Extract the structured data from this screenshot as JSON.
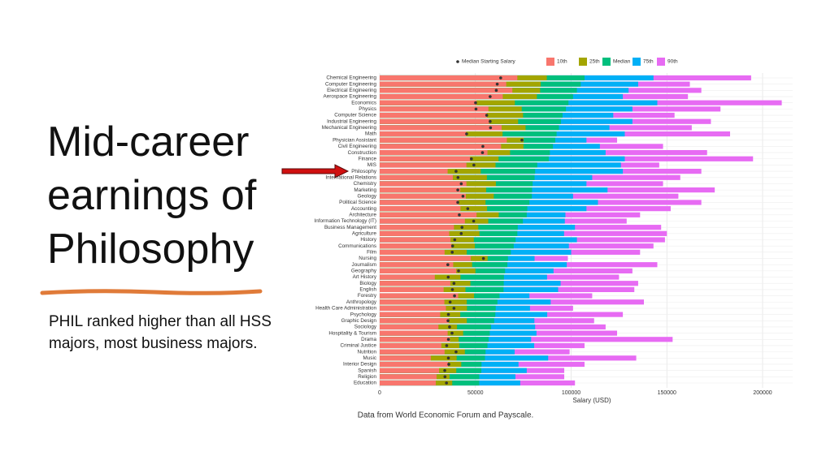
{
  "slide": {
    "title": "Mid-career earnings of Philosophy",
    "subtitle": "PHIL ranked higher than all HSS majors, most business majors."
  },
  "chart_data": {
    "type": "bar",
    "orientation": "horizontal",
    "x_label": "Salary (USD)",
    "caption": "Data from World Economic Forum and Payscale.",
    "categories": [
      "Chemical Engineering",
      "Computer Engineering",
      "Electrical Engineering",
      "Aerospace Engineering",
      "Economics",
      "Physics",
      "Computer Science",
      "Industrial Engineering",
      "Mechanical Engineering",
      "Math",
      "Physician Assistant",
      "Civil Engineering",
      "Construction",
      "Finance",
      "MIS",
      "Philosophy",
      "International Relations",
      "Chemistry",
      "Marketing",
      "Geology",
      "Political Science",
      "Accounting",
      "Architecture",
      "Information Technology (IT)",
      "Business Management",
      "Agriculture",
      "History",
      "Communications",
      "Film",
      "Nursing",
      "Journalism",
      "Geography",
      "Art History",
      "Biology",
      "English",
      "Forestry",
      "Anthropology",
      "Health Care Administration",
      "Psychology",
      "Graphic Design",
      "Sociology",
      "Hospitality & Tourism",
      "Drama",
      "Criminal Justice",
      "Nutrition",
      "Music",
      "Interior Design",
      "Spanish",
      "Religion",
      "Education"
    ],
    "series": [
      {
        "name": "10th",
        "color": "#f8766d",
        "values": [
          71900,
          66100,
          69300,
          64300,
          50600,
          56800,
          56000,
          57100,
          63700,
          45200,
          66400,
          63400,
          56300,
          47200,
          45300,
          35500,
          38200,
          45300,
          42100,
          45000,
          41200,
          42200,
          50600,
          44500,
          38800,
          36300,
          37000,
          37500,
          33900,
          47600,
          38400,
          40000,
          28800,
          36900,
          33400,
          41000,
          33800,
          34600,
          31600,
          36000,
          30700,
          35500,
          36700,
          32200,
          33900,
          26700,
          35700,
          31000,
          29700,
          29300
        ]
      },
      {
        "name": "25th",
        "color": "#a3a500",
        "values": [
          87300,
          84100,
          83800,
          82100,
          70600,
          74200,
          74900,
          72300,
          76200,
          64200,
          75200,
          75100,
          68100,
          62100,
          60500,
          52800,
          56000,
          60700,
          55600,
          59600,
          55300,
          56100,
          62200,
          56700,
          51500,
          52100,
          49200,
          49700,
          45500,
          56400,
          48300,
          50000,
          42200,
          47400,
          44800,
          49300,
          45500,
          45600,
          42100,
          45500,
          40400,
          43600,
          41300,
          41600,
          44500,
          40200,
          42600,
          40000,
          36500,
          37900
        ]
      },
      {
        "name": "Median",
        "color": "#00bf7d",
        "values": [
          107000,
          105000,
          103000,
          101000,
          98600,
          97300,
          95500,
          94700,
          93600,
          92400,
          91700,
          90500,
          88900,
          88300,
          82300,
          81200,
          80900,
          79900,
          79600,
          79500,
          78200,
          77100,
          76800,
          74800,
          72100,
          71900,
          71000,
          70000,
          68500,
          67000,
          66700,
          65500,
          64900,
          64800,
          64700,
          62600,
          61500,
          60600,
          60400,
          59800,
          58200,
          57500,
          56900,
          56300,
          55300,
          55000,
          53200,
          53100,
          52000,
          52000
        ]
      },
      {
        "name": "75th",
        "color": "#00b0f6",
        "values": [
          143000,
          135000,
          130000,
          127000,
          145000,
          132000,
          122000,
          132000,
          120000,
          128000,
          108000,
          115000,
          118000,
          128000,
          126000,
          127000,
          111000,
          108000,
          119000,
          101000,
          114000,
          108000,
          97000,
          96700,
          102000,
          96300,
          103000,
          98800,
          100000,
          80900,
          97700,
          90800,
          87400,
          94500,
          93200,
          78200,
          89300,
          78500,
          87500,
          80800,
          81200,
          81900,
          79100,
          80700,
          70500,
          88000,
          72500,
          76800,
          70900,
          73400
        ]
      },
      {
        "name": "90th",
        "color": "#e76bf3",
        "values": [
          194000,
          162000,
          168000,
          161000,
          210000,
          178000,
          154000,
          173000,
          163000,
          183000,
          124000,
          148000,
          171000,
          195000,
          146000,
          168000,
          157000,
          148000,
          175000,
          156000,
          168000,
          152000,
          136000,
          129000,
          147000,
          150000,
          149000,
          143000,
          136000,
          98300,
          145000,
          132000,
          125000,
          135000,
          133000,
          111000,
          138000,
          101000,
          127000,
          112000,
          118000,
          124000,
          153000,
          107000,
          99200,
          134000,
          107000,
          96400,
          96400,
          102000
        ]
      }
    ],
    "points": {
      "name": "Median Starting Salary",
      "color": "#333333",
      "values": [
        63200,
        61400,
        60900,
        57700,
        50100,
        50300,
        55900,
        57700,
        57900,
        45400,
        74300,
        53900,
        53700,
        47900,
        49200,
        39900,
        40900,
        42600,
        40800,
        43500,
        40800,
        46000,
        41600,
        49100,
        43000,
        42600,
        39200,
        38100,
        37900,
        54200,
        35600,
        41200,
        35800,
        38800,
        38000,
        39100,
        36800,
        38800,
        35900,
        35700,
        36500,
        37800,
        35900,
        35000,
        39900,
        35900,
        36100,
        34000,
        34100,
        34900
      ]
    },
    "xlim": [
      0,
      215700
    ],
    "xticks": [
      0,
      50000,
      100000,
      150000,
      200000
    ],
    "grid": true
  }
}
